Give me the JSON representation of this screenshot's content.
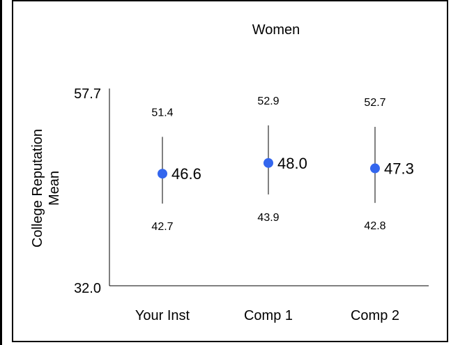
{
  "chart_data": {
    "type": "scatter",
    "title": "Women",
    "ylabel_line1": "College Reputation",
    "ylabel_line2": "Mean",
    "xlabel": "",
    "ylim": [
      32.0,
      57.7
    ],
    "y_ticks": [
      "57.7",
      "32.0"
    ],
    "categories": [
      "Your Inst",
      "Comp 1",
      "Comp 2"
    ],
    "series": [
      {
        "values": [
          46.6,
          48.0,
          47.3
        ],
        "upper": [
          51.4,
          52.9,
          52.7
        ],
        "lower": [
          42.7,
          43.9,
          42.8
        ],
        "value_labels": [
          "46.6",
          "48.0",
          "47.3"
        ],
        "upper_labels": [
          "51.4",
          "52.9",
          "52.7"
        ],
        "lower_labels": [
          "42.7",
          "43.9",
          "42.8"
        ]
      }
    ],
    "colors": {
      "point": "#3366ee",
      "errorbar": "#000000",
      "axis": "#000000"
    },
    "grid": false
  }
}
